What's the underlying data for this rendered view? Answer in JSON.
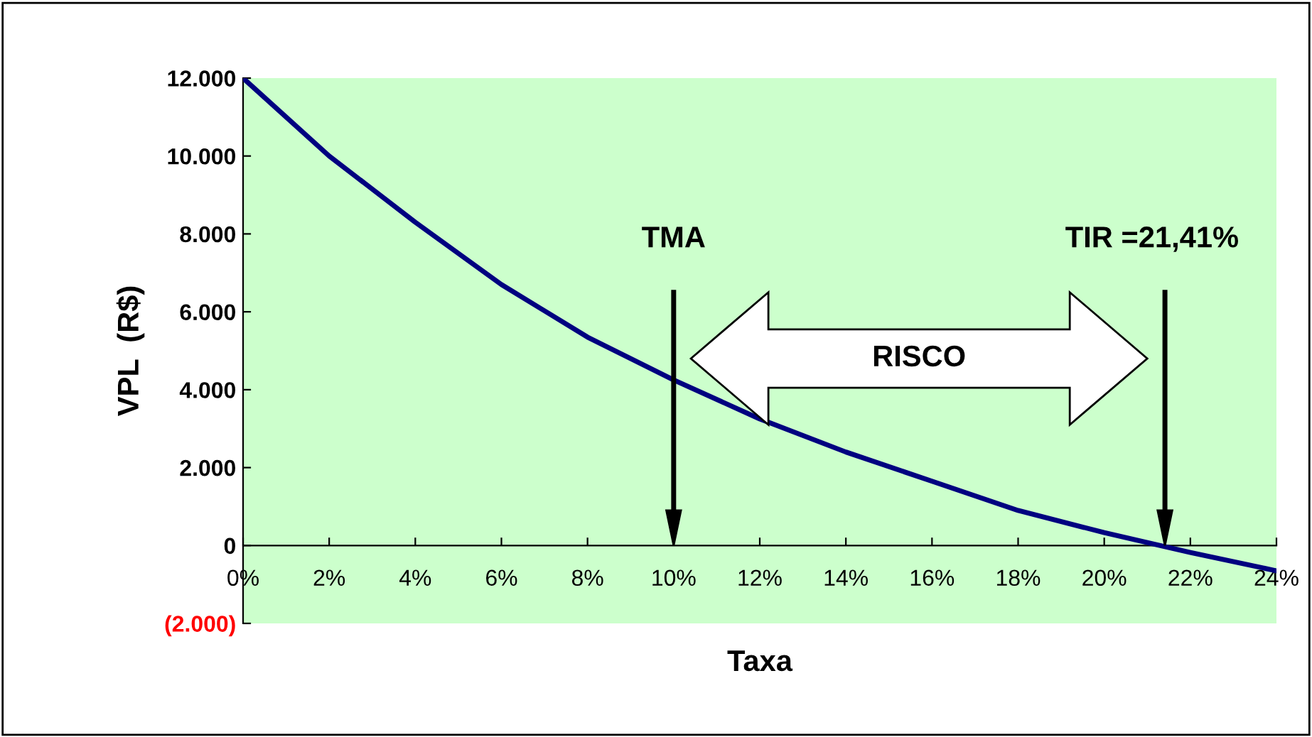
{
  "chart_data": {
    "type": "line",
    "xlabel": "Taxa",
    "ylabel": "VPL  (R$)",
    "x": [
      0,
      2,
      4,
      6,
      8,
      10,
      12,
      14,
      16,
      18,
      20,
      22,
      24
    ],
    "series": [
      {
        "color": "#000080",
        "values": [
          12000,
          10000,
          8300,
          6700,
          5350,
          4250,
          3250,
          2400,
          1650,
          900,
          330,
          -180,
          -650
        ]
      }
    ],
    "xlim": [
      0,
      24
    ],
    "xticks": [
      {
        "value": 0,
        "label": "0%"
      },
      {
        "value": 2,
        "label": "2%"
      },
      {
        "value": 4,
        "label": "4%"
      },
      {
        "value": 6,
        "label": "6%"
      },
      {
        "value": 8,
        "label": "8%"
      },
      {
        "value": 10,
        "label": "10%"
      },
      {
        "value": 12,
        "label": "12%"
      },
      {
        "value": 14,
        "label": "14%"
      },
      {
        "value": 16,
        "label": "16%"
      },
      {
        "value": 18,
        "label": "18%"
      },
      {
        "value": 20,
        "label": "20%"
      },
      {
        "value": 22,
        "label": "22%"
      },
      {
        "value": 24,
        "label": "24%"
      }
    ],
    "ylim": [
      -2000,
      12000
    ],
    "yticks": [
      {
        "value": -2000,
        "label": "(2.000)"
      },
      0,
      {
        "value": 2000,
        "label": "2.000"
      },
      {
        "value": 4000,
        "label": "4.000"
      },
      {
        "value": 6000,
        "label": "6.000"
      },
      {
        "value": 8000,
        "label": "8.000"
      },
      {
        "value": 10000,
        "label": "10.000"
      },
      {
        "value": 12000,
        "label": "12.000"
      }
    ],
    "ref_lines": [
      {
        "axis": "x",
        "value": 10,
        "label": "TMA"
      },
      {
        "axis": "x",
        "value": 21.41,
        "label": "TIR =21,41%"
      }
    ],
    "annotations": [
      "RISCO"
    ],
    "grid": false,
    "legend": false,
    "marker": "none",
    "line_style": "solid"
  }
}
